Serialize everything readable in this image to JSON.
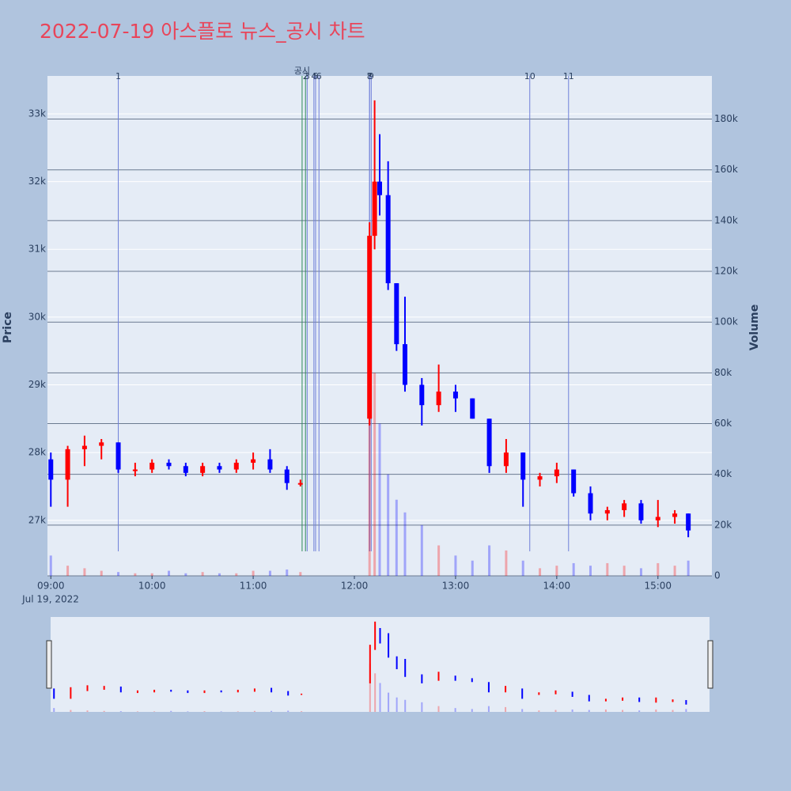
{
  "chart_data": {
    "type": "candlestick",
    "title": "2022-07-19 아스플로 뉴스_공시 차트",
    "y_label": "Price",
    "y2_label": "Volume",
    "x_date_label": "Jul 19, 2022",
    "up_color": "#ff0000",
    "down_color": "#0000ff",
    "x": [
      "2022-07-19 09:00",
      "2022-07-19 09:10",
      "2022-07-19 09:20",
      "2022-07-19 09:30",
      "2022-07-19 09:40",
      "2022-07-19 09:50",
      "2022-07-19 10:00",
      "2022-07-19 10:10",
      "2022-07-19 10:20",
      "2022-07-19 10:30",
      "2022-07-19 10:40",
      "2022-07-19 10:50",
      "2022-07-19 11:00",
      "2022-07-19 11:10",
      "2022-07-19 11:20",
      "2022-07-19 11:28",
      "2022-07-19 12:09",
      "2022-07-19 12:12",
      "2022-07-19 12:15",
      "2022-07-19 12:20",
      "2022-07-19 12:25",
      "2022-07-19 12:30",
      "2022-07-19 12:40",
      "2022-07-19 12:50",
      "2022-07-19 13:00",
      "2022-07-19 13:10",
      "2022-07-19 13:20",
      "2022-07-19 13:30",
      "2022-07-19 13:40",
      "2022-07-19 13:50",
      "2022-07-19 14:00",
      "2022-07-19 14:10",
      "2022-07-19 14:20",
      "2022-07-19 14:30",
      "2022-07-19 14:40",
      "2022-07-19 14:50",
      "2022-07-19 15:00",
      "2022-07-19 15:10",
      "2022-07-19 15:18"
    ],
    "open": [
      27900,
      27600,
      28050,
      28100,
      28150,
      27750,
      27750,
      27850,
      27800,
      27700,
      27800,
      27750,
      27850,
      27900,
      27750,
      27550,
      28500,
      31200,
      32000,
      31800,
      30500,
      29600,
      29000,
      28700,
      28900,
      28800,
      28500,
      27800,
      28000,
      27600,
      27650,
      27750,
      27400,
      27100,
      27150,
      27250,
      27000,
      27050,
      27100
    ],
    "high": [
      28000,
      28100,
      28250,
      28200,
      28150,
      27850,
      27900,
      27900,
      27850,
      27850,
      27850,
      27900,
      28000,
      28050,
      27800,
      27600,
      31400,
      33200,
      32700,
      32300,
      30500,
      30300,
      29100,
      29300,
      29000,
      28800,
      28500,
      28200,
      28000,
      27700,
      27850,
      27750,
      27500,
      27200,
      27300,
      27300,
      27300,
      27150,
      27100
    ],
    "low": [
      27200,
      27200,
      27800,
      27900,
      27700,
      27650,
      27700,
      27750,
      27650,
      27650,
      27700,
      27700,
      27750,
      27700,
      27450,
      27500,
      28400,
      31000,
      31500,
      30400,
      29500,
      28900,
      28400,
      28600,
      28600,
      28500,
      27700,
      27700,
      27200,
      27500,
      27550,
      27350,
      27000,
      27000,
      27050,
      26950,
      26900,
      26950,
      26750
    ],
    "close": [
      27600,
      28050,
      28100,
      28150,
      27750,
      27750,
      27850,
      27800,
      27700,
      27800,
      27750,
      27850,
      27900,
      27750,
      27550,
      27550,
      31200,
      32000,
      31800,
      30500,
      29600,
      29000,
      28700,
      28900,
      28800,
      28500,
      27800,
      28000,
      27600,
      27650,
      27750,
      27400,
      27100,
      27150,
      27250,
      27000,
      27050,
      27100,
      26850
    ],
    "volume": [
      8000,
      4000,
      3000,
      2000,
      1500,
      1000,
      1000,
      2000,
      1000,
      1500,
      1000,
      1000,
      2000,
      2000,
      2500,
      1500,
      100000,
      80000,
      60000,
      40000,
      30000,
      25000,
      20000,
      12000,
      8000,
      6000,
      12000,
      10000,
      6000,
      3000,
      4000,
      5000,
      4000,
      5000,
      4000,
      3000,
      5000,
      4000,
      6000
    ],
    "xlim": [
      "2022-07-19 08:58",
      "2022-07-19 15:32"
    ],
    "xticks": [
      {
        "value": "2022-07-19 09:00",
        "label": "09:00"
      },
      {
        "value": "2022-07-19 10:00",
        "label": "10:00"
      },
      {
        "value": "2022-07-19 11:00",
        "label": "11:00"
      },
      {
        "value": "2022-07-19 12:00",
        "label": "12:00"
      },
      {
        "value": "2022-07-19 13:00",
        "label": "13:00"
      },
      {
        "value": "2022-07-19 14:00",
        "label": "14:00"
      },
      {
        "value": "2022-07-19 15:00",
        "label": "15:00"
      }
    ],
    "ylim": [
      26180,
      33560
    ],
    "yticks": [
      {
        "value": 27000,
        "label": "27k"
      },
      {
        "value": 28000,
        "label": "28k"
      },
      {
        "value": 29000,
        "label": "29k"
      },
      {
        "value": 30000,
        "label": "30k"
      },
      {
        "value": 31000,
        "label": "31k"
      },
      {
        "value": 32000,
        "label": "32k"
      },
      {
        "value": 33000,
        "label": "33k"
      }
    ],
    "y2lim": [
      0,
      197000
    ],
    "y2ticks": [
      0,
      {
        "value": 20000,
        "label": "20k"
      },
      {
        "value": 40000,
        "label": "40k"
      },
      {
        "value": 60000,
        "label": "60k"
      },
      {
        "value": 80000,
        "label": "80k"
      },
      {
        "value": 100000,
        "label": "100k"
      },
      {
        "value": 120000,
        "label": "120k"
      },
      {
        "value": 140000,
        "label": "140k"
      },
      {
        "value": 160000,
        "label": "160k"
      },
      {
        "value": 180000,
        "label": "180k"
      }
    ],
    "events": [
      {
        "x": "2022-07-19 09:40",
        "label": "1",
        "color": "#6f7fd9"
      },
      {
        "x": "2022-07-19 11:29",
        "label": "공시",
        "color": "#2e8b57"
      },
      {
        "x": "2022-07-19 11:31",
        "label": "2",
        "color": "#2e8b57"
      },
      {
        "x": "2022-07-19 11:32",
        "label": "3",
        "color": "#6f7fd9"
      },
      {
        "x": "2022-07-19 11:36",
        "label": "4",
        "color": "#6f7fd9"
      },
      {
        "x": "2022-07-19 11:37",
        "label": "5",
        "color": "#6f7fd9"
      },
      {
        "x": "2022-07-19 11:39",
        "label": "6",
        "color": "#6f7fd9"
      },
      {
        "x": "2022-07-19 12:09",
        "label": "7",
        "color": "#6f7fd9"
      },
      {
        "x": "2022-07-19 12:09",
        "label": "8",
        "color": "#6f7fd9"
      },
      {
        "x": "2022-07-19 12:10",
        "label": "9",
        "color": "#6f7fd9"
      },
      {
        "x": "2022-07-19 13:44",
        "label": "10",
        "color": "#6f7fd9"
      },
      {
        "x": "2022-07-19 14:07",
        "label": "11",
        "color": "#6f7fd9"
      }
    ]
  }
}
